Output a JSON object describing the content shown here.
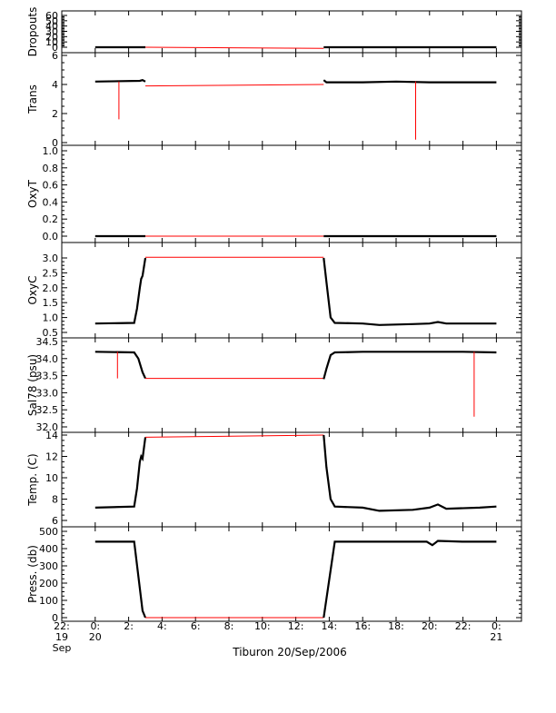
{
  "chart_data": {
    "type": "line",
    "xlabel": "Tiburon 20/Sep/2006",
    "x_range": [
      "2006-09-19 22:00",
      "2006-09-21 01:30"
    ],
    "x_ticks": [
      {
        "t": "2006-09-19 22:00",
        "line1": "22:",
        "line2": "19",
        "line3": "Sep"
      },
      {
        "t": "2006-09-20 00:00",
        "line1": "0:",
        "line2": "20",
        "line3": ""
      },
      {
        "t": "2006-09-20 02:00",
        "line1": "2:",
        "line2": "",
        "line3": ""
      },
      {
        "t": "2006-09-20 04:00",
        "line1": "4:",
        "line2": "",
        "line3": ""
      },
      {
        "t": "2006-09-20 06:00",
        "line1": "6:",
        "line2": "",
        "line3": ""
      },
      {
        "t": "2006-09-20 08:00",
        "line1": "8:",
        "line2": "",
        "line3": ""
      },
      {
        "t": "2006-09-20 10:00",
        "line1": "10:",
        "line2": "",
        "line3": ""
      },
      {
        "t": "2006-09-20 12:00",
        "line1": "12:",
        "line2": "",
        "line3": ""
      },
      {
        "t": "2006-09-20 14:00",
        "line1": "14:",
        "line2": "",
        "line3": ""
      },
      {
        "t": "2006-09-20 16:00",
        "line1": "16:",
        "line2": "",
        "line3": ""
      },
      {
        "t": "2006-09-20 18:00",
        "line1": "18:",
        "line2": "",
        "line3": ""
      },
      {
        "t": "2006-09-20 20:00",
        "line1": "20:",
        "line2": "",
        "line3": ""
      },
      {
        "t": "2006-09-20 22:00",
        "line1": "22:",
        "line2": "",
        "line3": ""
      },
      {
        "t": "2006-09-21 00:00",
        "line1": "0:",
        "line2": "21",
        "line3": ""
      }
    ],
    "colors": {
      "data": "#000000",
      "gap": "#ff0000"
    },
    "panels": [
      {
        "id": "dropouts",
        "ylabel": "Dropouts",
        "ylim": [
          0,
          60
        ],
        "yticks": [
          0,
          10,
          20,
          30,
          40,
          50,
          60
        ],
        "series": [
          {
            "kind": "data",
            "x": [
              "2006-09-20 00:00",
              "2006-09-20 03:00"
            ],
            "y": [
              0,
              0
            ]
          },
          {
            "kind": "gap",
            "x": [
              "2006-09-20 03:00",
              "2006-09-20 13:40"
            ],
            "y": [
              0,
              -2
            ]
          },
          {
            "kind": "data",
            "x": [
              "2006-09-20 13:40",
              "2006-09-21 00:00"
            ],
            "y": [
              0,
              0
            ]
          }
        ]
      },
      {
        "id": "trans",
        "ylabel": "Trans",
        "ylim": [
          0,
          6
        ],
        "yticks": [
          0,
          2,
          4,
          6
        ],
        "series": [
          {
            "kind": "data",
            "x": [
              "2006-09-20 00:00",
              "2006-09-20 02:40",
              "2006-09-20 02:50",
              "2006-09-20 03:00"
            ],
            "y": [
              4.2,
              4.25,
              4.3,
              4.2
            ]
          },
          {
            "kind": "gap",
            "x": [
              "2006-09-20 03:00",
              "2006-09-20 13:40"
            ],
            "y": [
              3.9,
              4.0
            ]
          },
          {
            "kind": "data",
            "x": [
              "2006-09-20 13:40",
              "2006-09-20 13:50",
              "2006-09-20 16:00",
              "2006-09-20 18:00",
              "2006-09-20 20:00",
              "2006-09-20 22:00",
              "2006-09-21 00:00"
            ],
            "y": [
              4.3,
              4.15,
              4.15,
              4.2,
              4.15,
              4.15,
              4.15
            ]
          },
          {
            "kind": "gap",
            "x": [
              "2006-09-20 01:25",
              "2006-09-20 01:25",
              "2006-09-20 01:25"
            ],
            "y": [
              4.2,
              1.6,
              4.2
            ]
          },
          {
            "kind": "gap",
            "x": [
              "2006-09-20 19:10",
              "2006-09-20 19:10",
              "2006-09-20 19:10"
            ],
            "y": [
              4.2,
              0.2,
              4.2
            ]
          }
        ]
      },
      {
        "id": "oxyt",
        "ylabel": "OxyT",
        "ylim": [
          0,
          1
        ],
        "yticks": [
          0.0,
          0.2,
          0.4,
          0.6,
          0.8,
          1.0
        ],
        "series": [
          {
            "kind": "data",
            "x": [
              "2006-09-20 00:00",
              "2006-09-20 03:00"
            ],
            "y": [
              0,
              0
            ]
          },
          {
            "kind": "gap",
            "x": [
              "2006-09-20 03:00",
              "2006-09-20 13:40"
            ],
            "y": [
              0,
              0
            ]
          },
          {
            "kind": "data",
            "x": [
              "2006-09-20 13:40",
              "2006-09-21 00:00"
            ],
            "y": [
              0,
              0
            ]
          }
        ]
      },
      {
        "id": "oxyc",
        "ylabel": "OxyC",
        "ylim": [
          0.5,
          3.0
        ],
        "yticks": [
          0.5,
          1.0,
          1.5,
          2.0,
          2.5,
          3.0
        ],
        "series": [
          {
            "kind": "data",
            "x": [
              "2006-09-20 00:00",
              "2006-09-20 02:20",
              "2006-09-20 02:30",
              "2006-09-20 02:40",
              "2006-09-20 02:45",
              "2006-09-20 02:50",
              "2006-09-20 03:00"
            ],
            "y": [
              0.8,
              0.82,
              1.3,
              2.0,
              2.3,
              2.4,
              3.0
            ]
          },
          {
            "kind": "gap",
            "x": [
              "2006-09-20 03:00",
              "2006-09-20 13:40"
            ],
            "y": [
              3.02,
              3.02
            ]
          },
          {
            "kind": "data",
            "x": [
              "2006-09-20 13:40",
              "2006-09-20 13:50",
              "2006-09-20 14:05",
              "2006-09-20 14:20",
              "2006-09-20 16:00",
              "2006-09-20 17:00",
              "2006-09-20 19:00",
              "2006-09-20 20:00",
              "2006-09-20 20:30",
              "2006-09-20 21:00",
              "2006-09-20 23:00",
              "2006-09-21 00:00"
            ],
            "y": [
              3.0,
              2.2,
              1.0,
              0.82,
              0.8,
              0.75,
              0.78,
              0.8,
              0.85,
              0.8,
              0.8,
              0.8
            ]
          }
        ]
      },
      {
        "id": "sal78",
        "ylabel": "Sal78 (psu)",
        "ylim": [
          32.0,
          34.5
        ],
        "yticks": [
          32.0,
          32.5,
          33.0,
          33.5,
          34.0,
          34.5
        ],
        "series": [
          {
            "kind": "data",
            "x": [
              "2006-09-20 00:00",
              "2006-09-20 02:20",
              "2006-09-20 02:35",
              "2006-09-20 02:50",
              "2006-09-20 03:00"
            ],
            "y": [
              34.2,
              34.18,
              34.0,
              33.6,
              33.42
            ]
          },
          {
            "kind": "gap",
            "x": [
              "2006-09-20 03:00",
              "2006-09-20 13:40"
            ],
            "y": [
              33.42,
              33.42
            ]
          },
          {
            "kind": "data",
            "x": [
              "2006-09-20 13:40",
              "2006-09-20 13:50",
              "2006-09-20 14:05",
              "2006-09-20 14:20",
              "2006-09-20 16:00",
              "2006-09-20 18:00",
              "2006-09-20 20:00",
              "2006-09-20 22:00",
              "2006-09-21 00:00"
            ],
            "y": [
              33.4,
              33.7,
              34.1,
              34.18,
              34.2,
              34.2,
              34.2,
              34.2,
              34.18
            ]
          },
          {
            "kind": "gap",
            "x": [
              "2006-09-20 01:20",
              "2006-09-20 01:20",
              "2006-09-20 01:20"
            ],
            "y": [
              34.2,
              33.42,
              34.2
            ]
          },
          {
            "kind": "gap",
            "x": [
              "2006-09-20 22:40",
              "2006-09-20 22:40",
              "2006-09-20 22:40"
            ],
            "y": [
              34.2,
              32.3,
              34.2
            ]
          }
        ]
      },
      {
        "id": "temp",
        "ylabel": "Temp. (C)",
        "ylim": [
          6,
          14
        ],
        "yticks": [
          6,
          8,
          10,
          12,
          14
        ],
        "series": [
          {
            "kind": "data",
            "x": [
              "2006-09-20 00:00",
              "2006-09-20 02:20",
              "2006-09-20 02:30",
              "2006-09-20 02:40",
              "2006-09-20 02:45",
              "2006-09-20 02:50",
              "2006-09-20 03:00"
            ],
            "y": [
              7.2,
              7.3,
              9.0,
              11.5,
              12.0,
              11.8,
              13.8
            ]
          },
          {
            "kind": "gap",
            "x": [
              "2006-09-20 03:00",
              "2006-09-20 13:40"
            ],
            "y": [
              13.8,
              14.0
            ]
          },
          {
            "kind": "data",
            "x": [
              "2006-09-20 13:40",
              "2006-09-20 13:50",
              "2006-09-20 14:05",
              "2006-09-20 14:20",
              "2006-09-20 16:00",
              "2006-09-20 17:00",
              "2006-09-20 19:00",
              "2006-09-20 20:00",
              "2006-09-20 20:30",
              "2006-09-20 21:00",
              "2006-09-20 23:00",
              "2006-09-21 00:00"
            ],
            "y": [
              14.0,
              11.0,
              8.0,
              7.3,
              7.2,
              6.9,
              7.0,
              7.2,
              7.5,
              7.1,
              7.2,
              7.3
            ]
          }
        ]
      },
      {
        "id": "press",
        "ylabel": "Press. (db)",
        "ylim": [
          0,
          500
        ],
        "yticks": [
          0,
          100,
          200,
          300,
          400,
          500
        ],
        "series": [
          {
            "kind": "data",
            "x": [
              "2006-09-20 00:00",
              "2006-09-20 02:20",
              "2006-09-20 02:50",
              "2006-09-20 03:00"
            ],
            "y": [
              440,
              440,
              40,
              0
            ]
          },
          {
            "kind": "gap",
            "x": [
              "2006-09-20 03:00",
              "2006-09-20 13:40"
            ],
            "y": [
              0,
              0
            ]
          },
          {
            "kind": "data",
            "x": [
              "2006-09-20 13:40",
              "2006-09-20 14:20",
              "2006-09-20 16:00",
              "2006-09-20 18:00",
              "2006-09-20 19:50",
              "2006-09-20 20:10",
              "2006-09-20 20:30",
              "2006-09-20 22:00",
              "2006-09-21 00:00"
            ],
            "y": [
              0,
              440,
              440,
              440,
              440,
              420,
              445,
              440,
              440
            ]
          }
        ]
      }
    ]
  }
}
